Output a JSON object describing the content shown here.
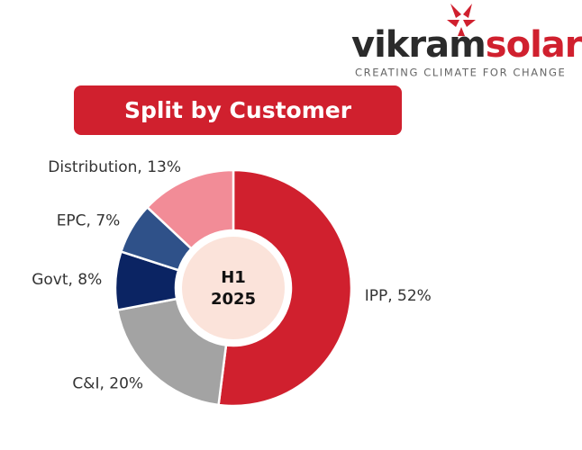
{
  "logo": {
    "name_start": "vikram",
    "name_end": "solar",
    "tagline": "CREATING CLIMATE FOR CHANGE"
  },
  "chart_data": {
    "type": "donut",
    "title": "Split by Customer",
    "center_label": [
      "H1",
      "2025"
    ],
    "values": [
      52,
      20,
      8,
      7,
      13
    ],
    "value_labels": [
      "IPP, 52%",
      "C&I, 20%",
      "Govt, 8%",
      "EPC, 7%",
      "Distribution, 13%"
    ],
    "colors": [
      "#d0202e",
      "#a3a3a3",
      "#0b2463",
      "#2f5189",
      "#f28c97"
    ]
  }
}
